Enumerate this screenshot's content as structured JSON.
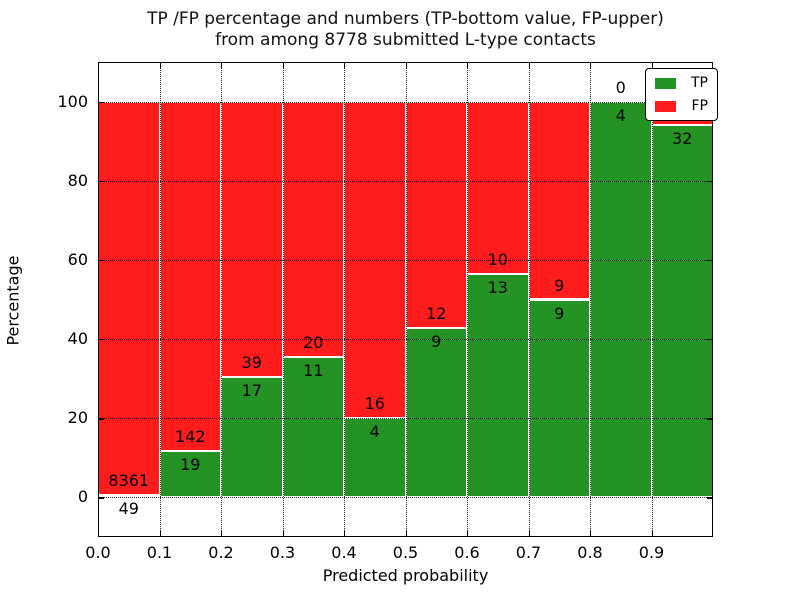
{
  "chart_data": {
    "type": "bar",
    "stacked": true,
    "normalization": "each bin scaled to TP+FP = 100%",
    "title_lines": [
      "TP /FP percentage and numbers (TP-bottom value, FP-upper)",
      "from among 8778 submitted L-type contacts"
    ],
    "xlabel": "Predicted probability",
    "ylabel": "Percentage",
    "xlim": [
      0.0,
      1.0
    ],
    "ylim": [
      -10,
      110
    ],
    "x_ticks": [
      "0.0",
      "0.1",
      "0.2",
      "0.3",
      "0.4",
      "0.5",
      "0.6",
      "0.7",
      "0.8",
      "0.9"
    ],
    "y_ticks": [
      "0",
      "20",
      "40",
      "60",
      "80",
      "100"
    ],
    "bin_width": 0.1,
    "annotation_rule": "TP count printed below green top edge, FP count printed above it",
    "bins": [
      {
        "range": "0.0-0.1",
        "tp": 49,
        "fp": 8361
      },
      {
        "range": "0.1-0.2",
        "tp": 19,
        "fp": 142
      },
      {
        "range": "0.2-0.3",
        "tp": 17,
        "fp": 39
      },
      {
        "range": "0.3-0.4",
        "tp": 11,
        "fp": 20
      },
      {
        "range": "0.4-0.5",
        "tp": 4,
        "fp": 16
      },
      {
        "range": "0.5-0.6",
        "tp": 9,
        "fp": 12
      },
      {
        "range": "0.6-0.7",
        "tp": 13,
        "fp": 10
      },
      {
        "range": "0.7-0.8",
        "tp": 9,
        "fp": 9
      },
      {
        "range": "0.8-0.9",
        "tp": 4,
        "fp": 0
      },
      {
        "range": "0.9-1.0",
        "tp": 32,
        "fp": 2
      }
    ],
    "total_contacts": 8778,
    "colors": {
      "tp": "#249324",
      "fp": "#ff1c1c",
      "grid": "#000000",
      "axis": "#000000"
    },
    "grid": {
      "visible": true,
      "style": "dotted"
    },
    "legend": {
      "position": "upper right",
      "entries": [
        {
          "label": "TP",
          "key": "tp"
        },
        {
          "label": "FP",
          "key": "fp"
        }
      ]
    }
  }
}
